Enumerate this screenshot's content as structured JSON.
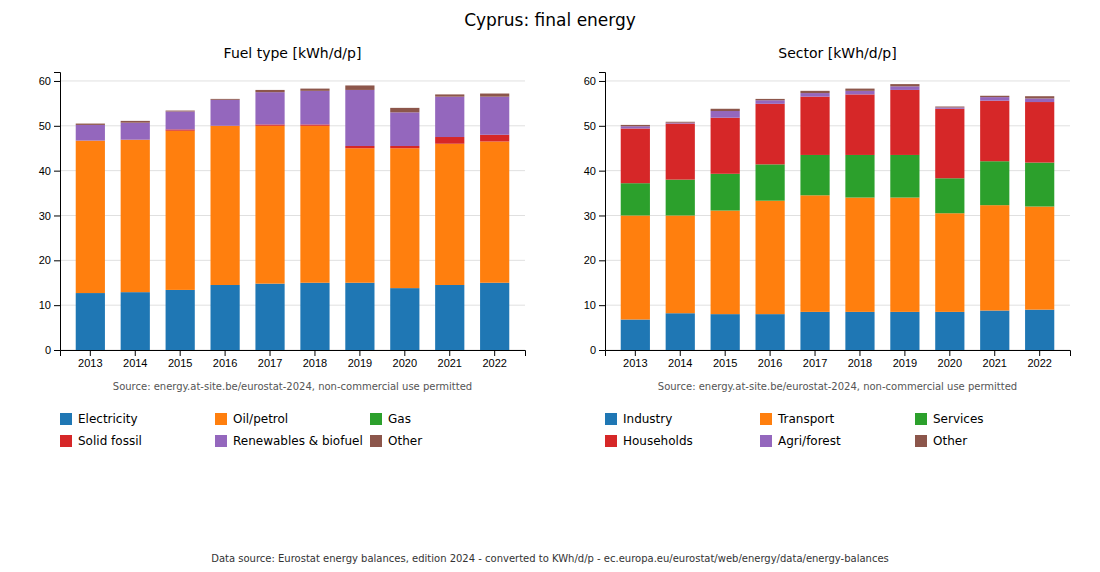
{
  "title": "Cyprus: final energy",
  "annotations": [
    "Data source: Eurostat energy balances, edition 2024 - converted to KWh/d/p - ec.europa.eu/eurostat/web/energy/data/energy-balances"
  ],
  "chart_data": [
    {
      "type": "bar",
      "stacked": true,
      "title": "Fuel type [kWh/d/p]",
      "categories": [
        "2013",
        "2014",
        "2015",
        "2016",
        "2017",
        "2018",
        "2019",
        "2020",
        "2021",
        "2022"
      ],
      "series": [
        {
          "name": "Electricity",
          "color": "#1f77b4",
          "values": [
            12.7,
            12.9,
            13.4,
            14.5,
            14.8,
            15.0,
            15.0,
            13.8,
            14.5,
            15.0
          ]
        },
        {
          "name": "Oil/petrol",
          "color": "#ff7f0e",
          "values": [
            34.0,
            34.0,
            35.5,
            35.5,
            35.2,
            35.0,
            30.0,
            31.2,
            31.5,
            31.5
          ]
        },
        {
          "name": "Gas",
          "color": "#2ca02c",
          "values": [
            0.0,
            0.0,
            0.0,
            0.0,
            0.0,
            0.0,
            0.0,
            0.0,
            0.0,
            0.0
          ]
        },
        {
          "name": "Solid fossil",
          "color": "#d62728",
          "values": [
            0.0,
            0.0,
            0.3,
            0.0,
            0.3,
            0.3,
            0.5,
            0.5,
            1.5,
            1.5
          ]
        },
        {
          "name": "Renewables & biofuel",
          "color": "#9467bd",
          "values": [
            3.5,
            3.8,
            4.0,
            5.8,
            7.2,
            7.5,
            12.5,
            7.5,
            9.0,
            8.5
          ]
        },
        {
          "name": "Other",
          "color": "#8c564b",
          "values": [
            0.3,
            0.4,
            0.2,
            0.2,
            0.5,
            0.5,
            1.0,
            1.0,
            0.5,
            0.7
          ]
        }
      ],
      "ylim": [
        0,
        62
      ],
      "yticks": [
        0,
        10,
        20,
        30,
        40,
        50,
        60
      ],
      "grid": true,
      "legend": "bottom",
      "annotations": [
        "Source: energy.at-site.be/eurostat-2024, non-commercial use permitted"
      ]
    },
    {
      "type": "bar",
      "stacked": true,
      "title": "Sector [kWh/d/p]",
      "categories": [
        "2013",
        "2014",
        "2015",
        "2016",
        "2017",
        "2018",
        "2019",
        "2020",
        "2021",
        "2022"
      ],
      "series": [
        {
          "name": "Industry",
          "color": "#1f77b4",
          "values": [
            6.8,
            8.2,
            8.0,
            8.0,
            8.5,
            8.5,
            8.5,
            8.5,
            8.8,
            9.0
          ]
        },
        {
          "name": "Transport",
          "color": "#ff7f0e",
          "values": [
            23.2,
            21.8,
            23.1,
            25.3,
            26.0,
            25.5,
            25.5,
            22.0,
            23.5,
            23.0
          ]
        },
        {
          "name": "Services",
          "color": "#2ca02c",
          "values": [
            7.2,
            8.0,
            8.2,
            8.1,
            9.0,
            9.5,
            9.5,
            7.8,
            9.8,
            9.8
          ]
        },
        {
          "name": "Households",
          "color": "#d62728",
          "values": [
            12.2,
            12.5,
            12.5,
            13.5,
            13.0,
            13.5,
            14.5,
            15.5,
            13.5,
            13.5
          ]
        },
        {
          "name": "Agri/forest",
          "color": "#9467bd",
          "values": [
            0.5,
            0.2,
            1.5,
            0.8,
            0.8,
            0.8,
            0.8,
            0.3,
            0.8,
            0.8
          ]
        },
        {
          "name": "Other",
          "color": "#8c564b",
          "values": [
            0.3,
            0.2,
            0.5,
            0.3,
            0.5,
            0.5,
            0.5,
            0.2,
            0.3,
            0.5
          ]
        }
      ],
      "ylim": [
        0,
        62
      ],
      "yticks": [
        0,
        10,
        20,
        30,
        40,
        50,
        60
      ],
      "grid": true,
      "legend": "bottom",
      "annotations": [
        "Source: energy.at-site.be/eurostat-2024, non-commercial use permitted"
      ]
    }
  ]
}
